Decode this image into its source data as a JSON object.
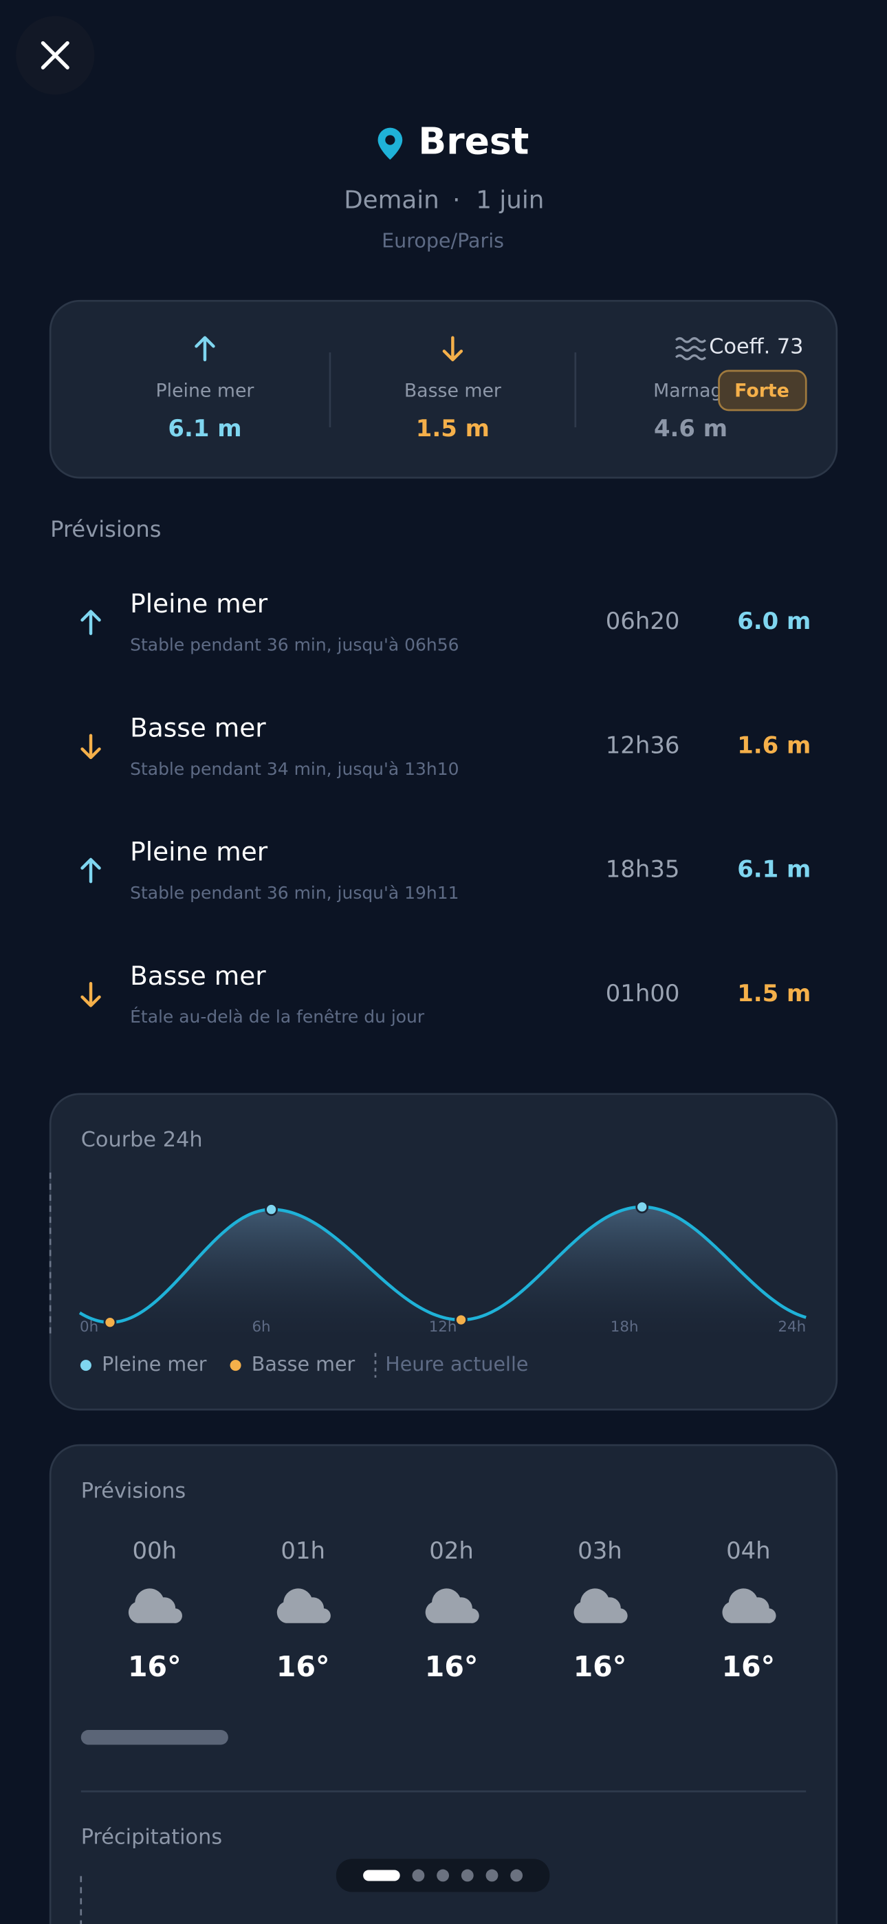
{
  "header": {
    "title": "Brest",
    "day": "Demain",
    "separator": "·",
    "date": "1 juin",
    "timezone": "Europe/Paris"
  },
  "colors": {
    "high": "#7fd6f0",
    "low": "#f5b04a",
    "neutral": "#8d97a8",
    "curve": "#1fb2d8"
  },
  "summary": {
    "high": {
      "type": "high",
      "label": "Pleine mer",
      "value": "6.1 m"
    },
    "low": {
      "type": "low",
      "label": "Basse mer",
      "value": "1.5 m"
    },
    "range": {
      "label": "Marnage",
      "value": "4.6 m"
    },
    "coefficient": "Coeff. 73",
    "badge": "Forte"
  },
  "forecasts_title": "Prévisions",
  "tides": [
    {
      "type": "high",
      "label": "Pleine mer",
      "note": "Stable pendant 36 min, jusqu'à 06h56",
      "time": "06h20",
      "height": "6.0 m"
    },
    {
      "type": "low",
      "label": "Basse mer",
      "note": "Stable pendant 34 min, jusqu'à 13h10",
      "time": "12h36",
      "height": "1.6 m"
    },
    {
      "type": "high",
      "label": "Pleine mer",
      "note": "Stable pendant 36 min, jusqu'à 19h11",
      "time": "18h35",
      "height": "6.1 m"
    },
    {
      "type": "low",
      "label": "Basse mer",
      "note": "Étale au-delà de la fenêtre du jour",
      "time": "01h00",
      "height": "1.5 m"
    }
  ],
  "curve": {
    "title": "Courbe 24h",
    "xlim": [
      0,
      24
    ],
    "xticks": [
      {
        "value": 0,
        "label": "0h"
      },
      {
        "value": 6,
        "label": "6h"
      },
      {
        "value": 12,
        "label": "12h"
      },
      {
        "value": 18,
        "label": "18h"
      },
      {
        "value": 24,
        "label": "24h"
      }
    ],
    "points": [
      {
        "x": 1.0,
        "y": 1.5,
        "type": "low"
      },
      {
        "x": 6.33,
        "y": 6.0,
        "type": "high"
      },
      {
        "x": 12.6,
        "y": 1.6,
        "type": "low"
      },
      {
        "x": 18.58,
        "y": 6.1,
        "type": "high"
      }
    ],
    "legend": {
      "high": "Pleine mer",
      "low": "Basse mer",
      "now": "Heure actuelle"
    }
  },
  "weather": {
    "title": "Prévisions",
    "hours": [
      {
        "hour": "00h",
        "temp": "16°"
      },
      {
        "hour": "01h",
        "temp": "16°"
      },
      {
        "hour": "02h",
        "temp": "16°"
      },
      {
        "hour": "03h",
        "temp": "16°"
      },
      {
        "hour": "04h",
        "temp": "16°"
      }
    ],
    "precipitation_title": "Précipitations"
  }
}
